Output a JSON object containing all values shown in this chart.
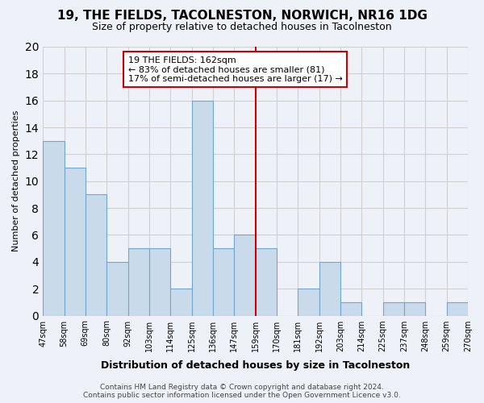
{
  "title": "19, THE FIELDS, TACOLNESTON, NORWICH, NR16 1DG",
  "subtitle": "Size of property relative to detached houses in Tacolneston",
  "xlabel": "Distribution of detached houses by size in Tacolneston",
  "ylabel": "Number of detached properties",
  "footer_line1": "Contains HM Land Registry data © Crown copyright and database right 2024.",
  "footer_line2": "Contains public sector information licensed under the Open Government Licence v3.0.",
  "bins": [
    "47sqm",
    "58sqm",
    "69sqm",
    "80sqm",
    "92sqm",
    "103sqm",
    "114sqm",
    "125sqm",
    "136sqm",
    "147sqm",
    "159sqm",
    "170sqm",
    "181sqm",
    "192sqm",
    "203sqm",
    "214sqm",
    "225sqm",
    "237sqm",
    "248sqm",
    "259sqm",
    "270sqm"
  ],
  "counts": [
    13,
    11,
    9,
    4,
    5,
    5,
    2,
    16,
    5,
    6,
    5,
    0,
    2,
    4,
    1,
    0,
    1,
    1,
    0,
    1
  ],
  "bar_color": "#c9daea",
  "bar_edge_color": "#6ea8d0",
  "grid_color": "#d0d0d0",
  "background_color": "#eef2f8",
  "property_line_color": "#cc0000",
  "property_line_bin": 9.5,
  "annotation_line1": "19 THE FIELDS: 162sqm",
  "annotation_line2": "← 83% of detached houses are smaller (81)",
  "annotation_line3": "17% of semi-detached houses are larger (17) →",
  "annotation_box_color": "#ffffff",
  "annotation_box_edge": "#cc0000",
  "ylim": [
    0,
    20
  ],
  "yticks": [
    0,
    2,
    4,
    6,
    8,
    10,
    12,
    14,
    16,
    18,
    20
  ]
}
